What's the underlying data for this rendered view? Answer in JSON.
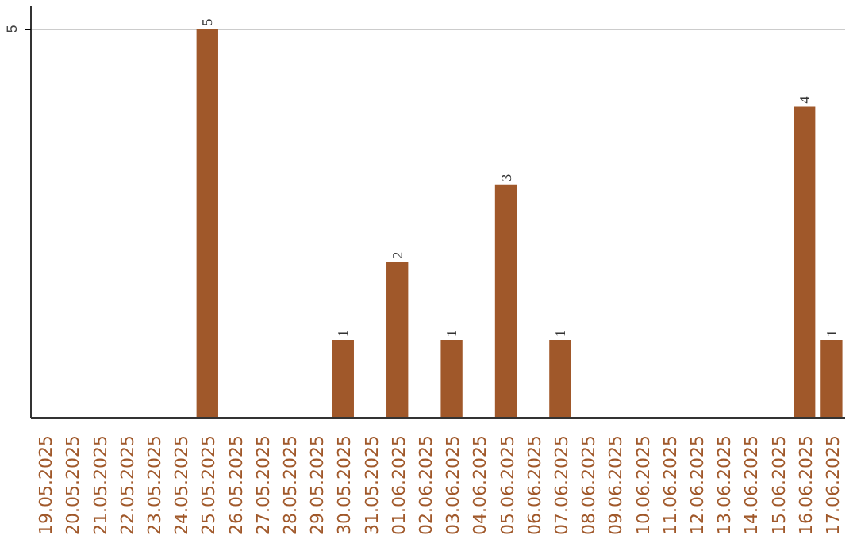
{
  "chart_data": {
    "type": "bar",
    "categories": [
      "19.05.2025",
      "20.05.2025",
      "21.05.2025",
      "22.05.2025",
      "23.05.2025",
      "24.05.2025",
      "25.05.2025",
      "26.05.2025",
      "27.05.2025",
      "28.05.2025",
      "29.05.2025",
      "30.05.2025",
      "31.05.2025",
      "01.06.2025",
      "02.06.2025",
      "03.06.2025",
      "04.06.2025",
      "05.06.2025",
      "06.06.2025",
      "07.06.2025",
      "08.06.2025",
      "09.06.2025",
      "10.06.2025",
      "11.06.2025",
      "12.06.2025",
      "13.06.2025",
      "14.06.2025",
      "15.06.2025",
      "16.06.2025",
      "17.06.2025"
    ],
    "values": [
      0,
      0,
      0,
      0,
      0,
      0,
      5,
      0,
      0,
      0,
      0,
      1,
      0,
      2,
      0,
      1,
      0,
      3,
      0,
      1,
      0,
      0,
      0,
      0,
      0,
      0,
      0,
      0,
      4,
      1
    ],
    "color": "#a0582a",
    "ylim": [
      0,
      5.3
    ],
    "yticks": [
      5
    ],
    "grid": "y",
    "value_labels": [
      null,
      null,
      null,
      null,
      null,
      null,
      "5",
      null,
      null,
      null,
      null,
      "1",
      null,
      "2",
      null,
      "1",
      null,
      "3",
      null,
      "1",
      null,
      null,
      null,
      null,
      null,
      null,
      null,
      null,
      "4",
      "1"
    ]
  }
}
